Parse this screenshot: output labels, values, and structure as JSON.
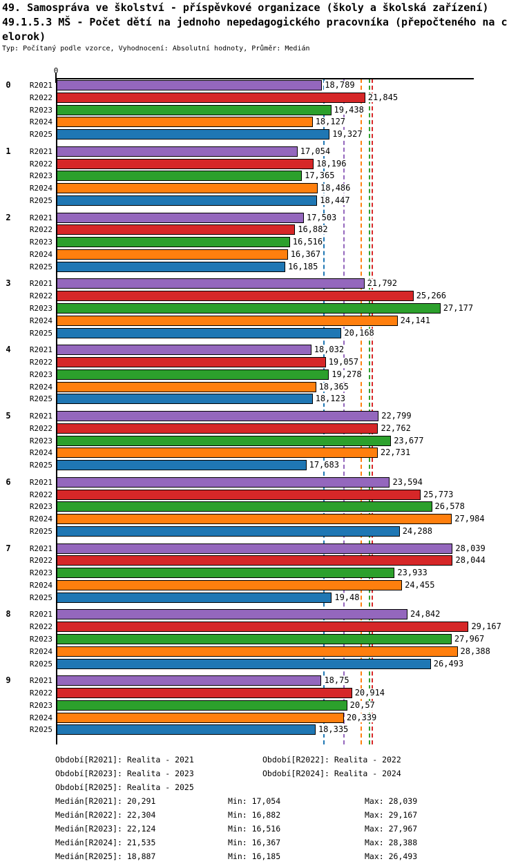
{
  "title_lines": [
    "49. Samospráva ve školství - příspěvkové organizace (školy a školská zařízení)",
    "49.1.5.3 MŠ - Počet dětí na jednoho nepedagogického pracovníka (přepočteného na c",
    "elorok)"
  ],
  "subtitle": "Typ: Počítaný podle vzorce, Vyhodnocení: Absolutní hodnoty, Průměr: Medián",
  "axis": {
    "zero_label": "0"
  },
  "colors": {
    "R2021": "#9467bd",
    "R2022": "#d62728",
    "R2023": "#2ca02c",
    "R2024": "#ff7f0e",
    "R2025": "#1f77b4"
  },
  "chart_data": {
    "type": "bar",
    "orientation": "horizontal",
    "title": "49.1.5.3 MŠ - Počet dětí na jednoho nepedagogického pracovníka (přepočteného na celorok)",
    "axis_range": [
      0,
      29.5
    ],
    "grid": false,
    "legend_position": "bottom",
    "series_labels": [
      "R2021",
      "R2022",
      "R2023",
      "R2024",
      "R2025"
    ],
    "categories": [
      "0",
      "1",
      "2",
      "3",
      "4",
      "5",
      "6",
      "7",
      "8",
      "9"
    ],
    "groups": [
      {
        "category": "0",
        "values": [
          18.789,
          21.845,
          19.438,
          18.127,
          19.327
        ],
        "labels": [
          "18,789",
          "21,845",
          "19,438",
          "18,127",
          "19,327"
        ]
      },
      {
        "category": "1",
        "values": [
          17.054,
          18.196,
          17.365,
          18.486,
          18.447
        ],
        "labels": [
          "17,054",
          "18,196",
          "17,365",
          "18,486",
          "18,447"
        ]
      },
      {
        "category": "2",
        "values": [
          17.503,
          16.882,
          16.516,
          16.367,
          16.185
        ],
        "labels": [
          "17,503",
          "16,882",
          "16,516",
          "16,367",
          "16,185"
        ]
      },
      {
        "category": "3",
        "values": [
          21.792,
          25.266,
          27.177,
          24.141,
          20.168
        ],
        "labels": [
          "21,792",
          "25,266",
          "27,177",
          "24,141",
          "20,168"
        ]
      },
      {
        "category": "4",
        "values": [
          18.032,
          19.057,
          19.278,
          18.365,
          18.123
        ],
        "labels": [
          "18,032",
          "19,057",
          "19,278",
          "18,365",
          "18,123"
        ]
      },
      {
        "category": "5",
        "values": [
          22.799,
          22.762,
          23.677,
          22.731,
          17.683
        ],
        "labels": [
          "22,799",
          "22,762",
          "23,677",
          "22,731",
          "17,683"
        ]
      },
      {
        "category": "6",
        "values": [
          23.594,
          25.773,
          26.578,
          27.984,
          24.288
        ],
        "labels": [
          "23,594",
          "25,773",
          "26,578",
          "27,984",
          "24,288"
        ]
      },
      {
        "category": "7",
        "values": [
          28.039,
          28.044,
          23.933,
          24.455,
          19.48
        ],
        "labels": [
          "28,039",
          "28,044",
          "23,933",
          "24,455",
          "19,48"
        ]
      },
      {
        "category": "8",
        "values": [
          24.842,
          29.167,
          27.967,
          28.388,
          26.493
        ],
        "labels": [
          "24,842",
          "29,167",
          "27,967",
          "28,388",
          "26,493"
        ]
      },
      {
        "category": "9",
        "values": [
          18.75,
          20.914,
          20.57,
          20.339,
          18.335
        ],
        "labels": [
          "18,75",
          "20,914",
          "20,57",
          "20,339",
          "18,335"
        ]
      }
    ],
    "medians": {
      "R2021": 20.291,
      "R2022": 22.304,
      "R2023": 22.124,
      "R2024": 21.535,
      "R2025": 18.887
    }
  },
  "legend": {
    "periods": [
      [
        "Období[R2021]: Realita - 2021",
        "Období[R2022]: Realita - 2022"
      ],
      [
        "Období[R2023]: Realita - 2023",
        "Období[R2024]: Realita - 2024"
      ],
      [
        "Období[R2025]: Realita - 2025",
        ""
      ]
    ],
    "stats": [
      [
        "Medián[R2021]: 20,291",
        "Min: 17,054",
        "Max: 28,039"
      ],
      [
        "Medián[R2022]: 22,304",
        "Min: 16,882",
        "Max: 29,167"
      ],
      [
        "Medián[R2023]: 22,124",
        "Min: 16,516",
        "Max: 27,967"
      ],
      [
        "Medián[R2024]: 21,535",
        "Min: 16,367",
        "Max: 28,388"
      ],
      [
        "Medián[R2025]: 18,887",
        "Min: 16,185",
        "Max: 26,493"
      ]
    ]
  }
}
